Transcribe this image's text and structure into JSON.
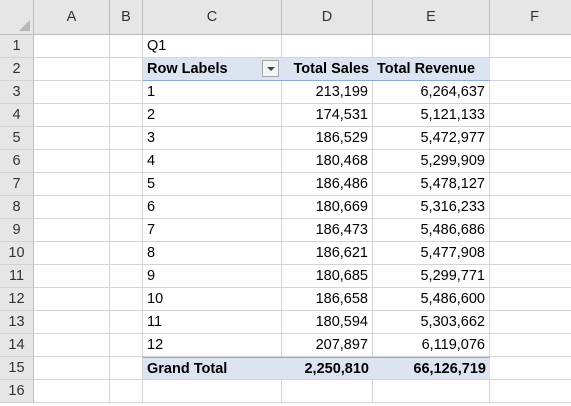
{
  "columns": [
    "A",
    "B",
    "C",
    "D",
    "E",
    "F"
  ],
  "rows": [
    "1",
    "2",
    "3",
    "4",
    "5",
    "6",
    "7",
    "8",
    "9",
    "10",
    "11",
    "12",
    "13",
    "14",
    "15",
    "16"
  ],
  "pivot": {
    "filter_label": "Q1",
    "headers": {
      "row_labels": "Row Labels",
      "total_sales": "Total Sales",
      "total_revenue": "Total Revenue"
    },
    "data": [
      {
        "label": "1",
        "sales": "213,199",
        "revenue": "6,264,637"
      },
      {
        "label": "2",
        "sales": "174,531",
        "revenue": "5,121,133"
      },
      {
        "label": "3",
        "sales": "186,529",
        "revenue": "5,472,977"
      },
      {
        "label": "4",
        "sales": "180,468",
        "revenue": "5,299,909"
      },
      {
        "label": "5",
        "sales": "186,486",
        "revenue": "5,478,127"
      },
      {
        "label": "6",
        "sales": "180,669",
        "revenue": "5,316,233"
      },
      {
        "label": "7",
        "sales": "186,473",
        "revenue": "5,486,686"
      },
      {
        "label": "8",
        "sales": "186,621",
        "revenue": "5,477,908"
      },
      {
        "label": "9",
        "sales": "180,685",
        "revenue": "5,299,771"
      },
      {
        "label": "10",
        "sales": "186,658",
        "revenue": "5,486,600"
      },
      {
        "label": "11",
        "sales": "180,594",
        "revenue": "5,303,662"
      },
      {
        "label": "12",
        "sales": "207,897",
        "revenue": "6,119,076"
      }
    ],
    "grand_total": {
      "label": "Grand Total",
      "sales": "2,250,810",
      "revenue": "66,126,719"
    }
  },
  "colors": {
    "header_bg": "#e6e6e6",
    "pivot_band": "#dce3f1",
    "gridline": "#d4d4d4"
  }
}
